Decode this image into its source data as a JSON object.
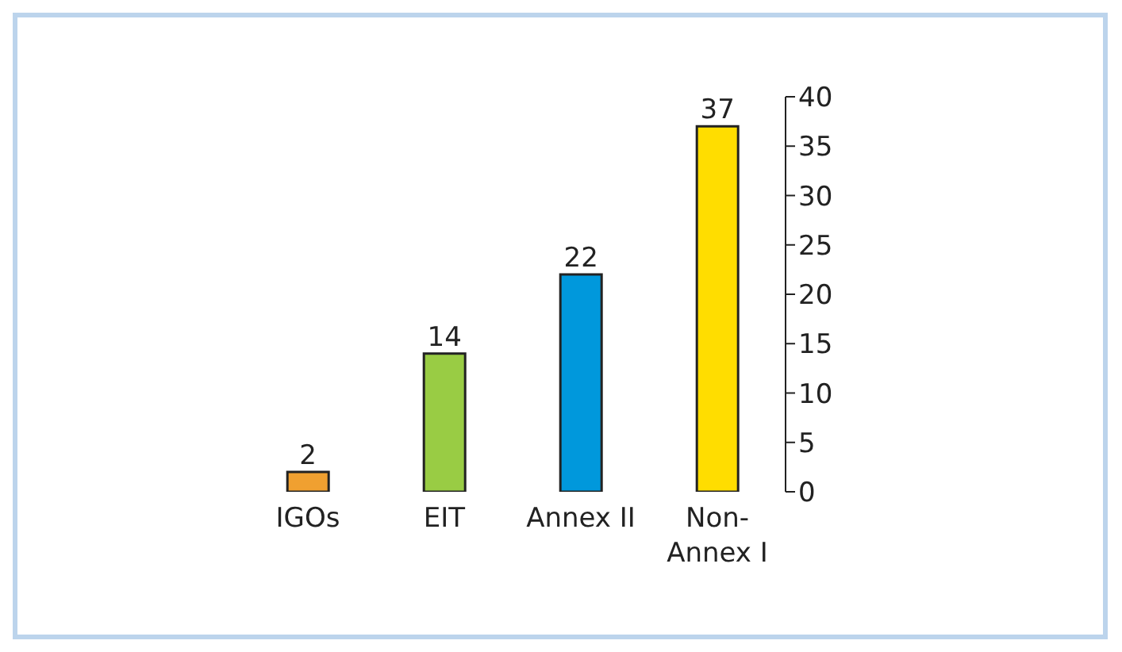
{
  "chart_data": {
    "type": "bar",
    "categories": [
      "IGOs",
      "EIT",
      "Annex II",
      "Non-Annex I"
    ],
    "values": [
      2,
      14,
      22,
      37
    ],
    "colors": [
      "#f0a030",
      "#99cc44",
      "#0098dc",
      "#ffdd00"
    ],
    "ylim": [
      0,
      40
    ],
    "yticks": [
      0,
      5,
      10,
      15,
      20,
      25,
      30,
      35,
      40
    ],
    "grid": false,
    "data_labels": true
  }
}
